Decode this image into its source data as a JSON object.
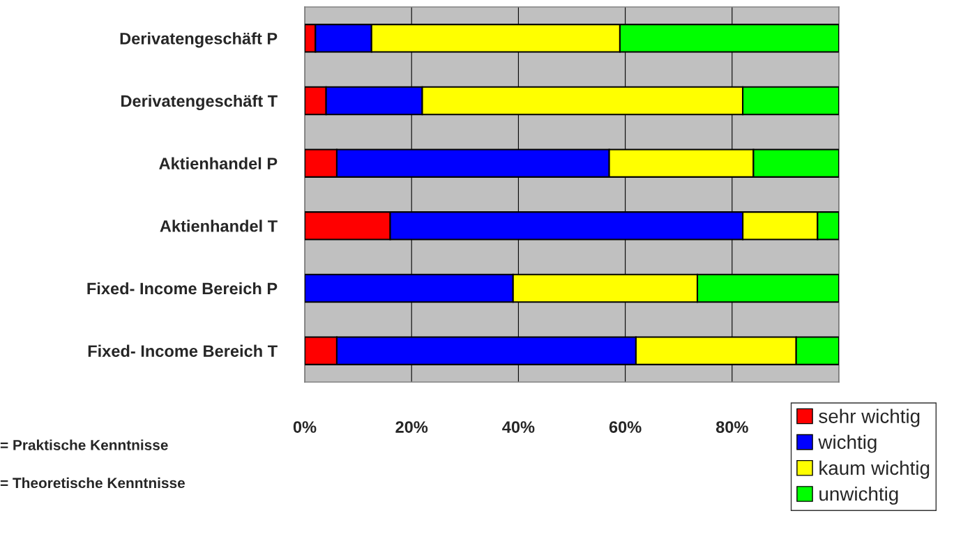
{
  "chart_data": {
    "type": "bar",
    "orientation": "horizontal",
    "stacked": true,
    "categories": [
      "Derivatengeschäft P",
      "Derivatengeschäft T",
      "Aktienhandel P",
      "Aktienhandel T",
      "Fixed- Income Bereich P",
      "Fixed- Income Bereich T"
    ],
    "series": [
      {
        "name": "sehr wichtig",
        "color": "#ff0000",
        "values": [
          2,
          4,
          6,
          16,
          0,
          6
        ]
      },
      {
        "name": "wichtig",
        "color": "#0000ff",
        "values": [
          10.5,
          18,
          51,
          66,
          39,
          56
        ]
      },
      {
        "name": "kaum wichtig",
        "color": "#ffff00",
        "values": [
          46.5,
          60,
          27,
          14,
          34.5,
          30
        ]
      },
      {
        "name": "unwichtig",
        "color": "#00ff00",
        "values": [
          41,
          18,
          16,
          4,
          26.5,
          8
        ]
      }
    ],
    "xlim": [
      0,
      100
    ],
    "xticks": [
      {
        "value": 0,
        "label": "0%"
      },
      {
        "value": 20,
        "label": "20%"
      },
      {
        "value": 40,
        "label": "40%"
      },
      {
        "value": 60,
        "label": "60%"
      },
      {
        "value": 80,
        "label": "80%"
      },
      {
        "value": 100,
        "label": null
      }
    ],
    "grid": "x",
    "legend": "bottom right",
    "annotations": [
      "= Praktische Kenntnisse",
      "= Theoretische Kenntnisse"
    ]
  }
}
